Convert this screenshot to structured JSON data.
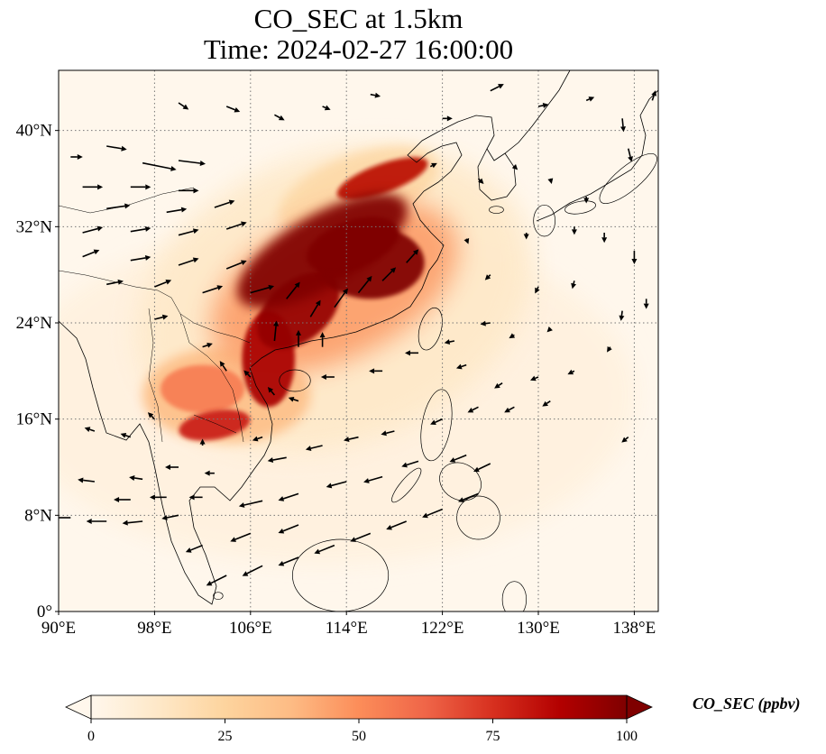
{
  "title": {
    "line1": "CO_SEC at 1.5km",
    "line2": "Time: 2024-02-27 16:00:00"
  },
  "map": {
    "lon_range": [
      90,
      140
    ],
    "lat_range": [
      0,
      45
    ],
    "lon_ticks": [
      90,
      98,
      106,
      114,
      122,
      130,
      138
    ],
    "lon_tick_labels": [
      "90°E",
      "98°E",
      "106°E",
      "114°E",
      "122°E",
      "130°E",
      "138°E"
    ],
    "lat_ticks": [
      0,
      8,
      16,
      24,
      32,
      40
    ],
    "lat_tick_labels": [
      "0°",
      "8°N",
      "16°N",
      "24°N",
      "32°N",
      "40°N"
    ],
    "gridlines": true,
    "field_blobs": [
      {
        "lon": 112,
        "lat": 30,
        "rx": 8,
        "ry": 3,
        "rot": -30,
        "value": 100
      },
      {
        "lon": 116,
        "lat": 29,
        "rx": 4.5,
        "ry": 3,
        "rot": 0,
        "value": 100
      },
      {
        "lon": 114.5,
        "lat": 30.5,
        "rx": 4,
        "ry": 2,
        "rot": -20,
        "value": 100
      },
      {
        "lon": 110,
        "lat": 25,
        "rx": 4,
        "ry": 2.5,
        "rot": -40,
        "value": 95
      },
      {
        "lon": 107.5,
        "lat": 21,
        "rx": 2.2,
        "ry": 4,
        "rot": 0,
        "value": 90
      },
      {
        "lon": 117,
        "lat": 36,
        "rx": 4,
        "ry": 1.2,
        "rot": -20,
        "value": 85
      },
      {
        "lon": 103,
        "lat": 15.5,
        "rx": 3,
        "ry": 1.2,
        "rot": -10,
        "value": 80
      },
      {
        "lon": 102,
        "lat": 18.5,
        "rx": 3.5,
        "ry": 2,
        "rot": 0,
        "value": 55
      },
      {
        "lon": 113,
        "lat": 27,
        "rx": 11,
        "ry": 6,
        "rot": -25,
        "value": 45
      },
      {
        "lon": 104,
        "lat": 18,
        "rx": 7,
        "ry": 4,
        "rot": 0,
        "value": 35
      },
      {
        "lon": 115,
        "lat": 35,
        "rx": 7,
        "ry": 3,
        "rot": -20,
        "value": 22
      },
      {
        "lon": 113,
        "lat": 26,
        "rx": 17,
        "ry": 12,
        "rot": -20,
        "value": 12
      },
      {
        "lon": 112,
        "lat": 18,
        "rx": 26,
        "ry": 14,
        "rot": 0,
        "value": 5
      }
    ],
    "wind_vectors": [
      {
        "lon": 91,
        "lat": 37.8,
        "u": 1.8,
        "v": 0
      },
      {
        "lon": 94,
        "lat": 38.7,
        "u": 3,
        "v": -0.5
      },
      {
        "lon": 97,
        "lat": 37.3,
        "u": 5,
        "v": -1
      },
      {
        "lon": 100,
        "lat": 37.5,
        "u": 4,
        "v": -0.5
      },
      {
        "lon": 92,
        "lat": 35.3,
        "u": 3,
        "v": 0
      },
      {
        "lon": 96,
        "lat": 35.3,
        "u": 3,
        "v": 0
      },
      {
        "lon": 100,
        "lat": 35,
        "u": 3,
        "v": 0
      },
      {
        "lon": 94,
        "lat": 33.5,
        "u": 3.5,
        "v": 0.5
      },
      {
        "lon": 99,
        "lat": 33.2,
        "u": 3,
        "v": 0.5
      },
      {
        "lon": 103,
        "lat": 33.6,
        "u": 3,
        "v": 1
      },
      {
        "lon": 92,
        "lat": 31.5,
        "u": 3,
        "v": 0.8
      },
      {
        "lon": 96,
        "lat": 31.6,
        "u": 3,
        "v": 0.5
      },
      {
        "lon": 100,
        "lat": 31.3,
        "u": 3,
        "v": 0.8
      },
      {
        "lon": 104,
        "lat": 31.8,
        "u": 3,
        "v": 1
      },
      {
        "lon": 92,
        "lat": 29.5,
        "u": 2.5,
        "v": 1
      },
      {
        "lon": 96,
        "lat": 29.2,
        "u": 3,
        "v": 0.5
      },
      {
        "lon": 100,
        "lat": 28.8,
        "u": 3,
        "v": 1
      },
      {
        "lon": 104,
        "lat": 28.5,
        "u": 3,
        "v": 1.2
      },
      {
        "lon": 94,
        "lat": 27.2,
        "u": 2.5,
        "v": 0.5
      },
      {
        "lon": 98,
        "lat": 27,
        "u": 2.5,
        "v": 1
      },
      {
        "lon": 102,
        "lat": 26.5,
        "u": 3,
        "v": 1
      },
      {
        "lon": 106,
        "lat": 26.5,
        "u": 3.5,
        "v": 1
      },
      {
        "lon": 109,
        "lat": 26,
        "u": 2,
        "v": 2.5
      },
      {
        "lon": 111,
        "lat": 24.5,
        "u": 1.5,
        "v": 2.5
      },
      {
        "lon": 113,
        "lat": 25.3,
        "u": 2,
        "v": 2.8
      },
      {
        "lon": 115,
        "lat": 26.5,
        "u": 2,
        "v": 2.5
      },
      {
        "lon": 117,
        "lat": 27.5,
        "u": 2,
        "v": 2
      },
      {
        "lon": 119,
        "lat": 29,
        "u": 1.8,
        "v": 2
      },
      {
        "lon": 108,
        "lat": 22.5,
        "u": 0.3,
        "v": 3
      },
      {
        "lon": 110,
        "lat": 22,
        "u": 0,
        "v": 2.5
      },
      {
        "lon": 112,
        "lat": 22,
        "u": 0,
        "v": 2.2
      },
      {
        "lon": 98,
        "lat": 24.3,
        "u": 2,
        "v": 0.5
      },
      {
        "lon": 102,
        "lat": 22,
        "u": 1.5,
        "v": 0.5
      },
      {
        "lon": 104,
        "lat": 20,
        "u": -1,
        "v": 1.5
      },
      {
        "lon": 106,
        "lat": 19.5,
        "u": -1,
        "v": 1
      },
      {
        "lon": 108,
        "lat": 18,
        "u": -1,
        "v": 1.2
      },
      {
        "lon": 110,
        "lat": 17.5,
        "u": -1.5,
        "v": 0.5
      },
      {
        "lon": 113,
        "lat": 19.5,
        "u": -2,
        "v": 0
      },
      {
        "lon": 117,
        "lat": 20,
        "u": -2,
        "v": 0
      },
      {
        "lon": 120,
        "lat": 21.5,
        "u": -2,
        "v": 0
      },
      {
        "lon": 123,
        "lat": 22.5,
        "u": -1.5,
        "v": -0.3
      },
      {
        "lon": 126,
        "lat": 24,
        "u": -1.5,
        "v": -0.2
      },
      {
        "lon": 124,
        "lat": 20.5,
        "u": -1.5,
        "v": -0.5
      },
      {
        "lon": 127,
        "lat": 19,
        "u": -1.2,
        "v": -0.8
      },
      {
        "lon": 130,
        "lat": 19.5,
        "u": -1.2,
        "v": -0.5
      },
      {
        "lon": 133,
        "lat": 20,
        "u": -1,
        "v": -0.5
      },
      {
        "lon": 128,
        "lat": 17,
        "u": -1.5,
        "v": -0.8
      },
      {
        "lon": 131,
        "lat": 17.5,
        "u": -1.2,
        "v": -0.8
      },
      {
        "lon": 125,
        "lat": 17,
        "u": -1.6,
        "v": -0.8
      },
      {
        "lon": 122,
        "lat": 16,
        "u": -1.8,
        "v": -0.8
      },
      {
        "lon": 118,
        "lat": 15,
        "u": -2,
        "v": -0.5
      },
      {
        "lon": 115,
        "lat": 14.5,
        "u": -2.2,
        "v": -0.5
      },
      {
        "lon": 112,
        "lat": 13.8,
        "u": -2.5,
        "v": -0.6
      },
      {
        "lon": 109,
        "lat": 12.8,
        "u": -2.8,
        "v": -0.5
      },
      {
        "lon": 120,
        "lat": 12.5,
        "u": -2.5,
        "v": -0.8
      },
      {
        "lon": 117,
        "lat": 11.2,
        "u": -2.8,
        "v": -0.8
      },
      {
        "lon": 114,
        "lat": 10.8,
        "u": -3,
        "v": -0.8
      },
      {
        "lon": 110,
        "lat": 9.8,
        "u": -3,
        "v": -1
      },
      {
        "lon": 107,
        "lat": 9.2,
        "u": -3.5,
        "v": -0.8
      },
      {
        "lon": 124,
        "lat": 13,
        "u": -2.5,
        "v": -1
      },
      {
        "lon": 126,
        "lat": 12.3,
        "u": -2.5,
        "v": -1.2
      },
      {
        "lon": 125,
        "lat": 9.8,
        "u": -3,
        "v": -1.2
      },
      {
        "lon": 122,
        "lat": 8.5,
        "u": -3,
        "v": -1.2
      },
      {
        "lon": 119,
        "lat": 7.5,
        "u": -3,
        "v": -1.2
      },
      {
        "lon": 116,
        "lat": 6.5,
        "u": -3,
        "v": -1.2
      },
      {
        "lon": 113,
        "lat": 5.5,
        "u": -3,
        "v": -1.2
      },
      {
        "lon": 110,
        "lat": 4.5,
        "u": -3,
        "v": -1.2
      },
      {
        "lon": 107,
        "lat": 3.8,
        "u": -3,
        "v": -1.5
      },
      {
        "lon": 104,
        "lat": 3,
        "u": -3,
        "v": -1.5
      },
      {
        "lon": 110,
        "lat": 7.2,
        "u": -3,
        "v": -1.2
      },
      {
        "lon": 106,
        "lat": 6.5,
        "u": -3,
        "v": -1.2
      },
      {
        "lon": 102,
        "lat": 5.5,
        "u": -2.5,
        "v": -1
      },
      {
        "lon": 100,
        "lat": 8,
        "u": -2.5,
        "v": -0.5
      },
      {
        "lon": 97,
        "lat": 7.5,
        "u": -3,
        "v": -0.3
      },
      {
        "lon": 94,
        "lat": 7.5,
        "u": -3,
        "v": 0
      },
      {
        "lon": 91,
        "lat": 7.8,
        "u": -2.5,
        "v": 0
      },
      {
        "lon": 96,
        "lat": 9.3,
        "u": -2.5,
        "v": 0
      },
      {
        "lon": 99,
        "lat": 9.5,
        "u": -2.5,
        "v": 0
      },
      {
        "lon": 102,
        "lat": 9.5,
        "u": -2,
        "v": 0
      },
      {
        "lon": 93,
        "lat": 10.8,
        "u": -2.5,
        "v": 0.3
      },
      {
        "lon": 97,
        "lat": 11,
        "u": -2,
        "v": 0.3
      },
      {
        "lon": 100,
        "lat": 12,
        "u": -2,
        "v": 0
      },
      {
        "lon": 102,
        "lat": 13.8,
        "u": 0,
        "v": 1
      },
      {
        "lon": 96,
        "lat": 14.5,
        "u": -1.5,
        "v": 0.5
      },
      {
        "lon": 93,
        "lat": 15,
        "u": -1.5,
        "v": 0.5
      },
      {
        "lon": 98,
        "lat": 16,
        "u": -1,
        "v": 1
      },
      {
        "lon": 107,
        "lat": 14.5,
        "u": -1.5,
        "v": -0.5
      },
      {
        "lon": 103,
        "lat": 11.5,
        "u": -1.5,
        "v": 0
      },
      {
        "lon": 104,
        "lat": 42,
        "u": 2,
        "v": -0.8
      },
      {
        "lon": 100,
        "lat": 42.3,
        "u": 1.5,
        "v": -1
      },
      {
        "lon": 108,
        "lat": 41.3,
        "u": 1.5,
        "v": -0.8
      },
      {
        "lon": 112,
        "lat": 42,
        "u": 1.2,
        "v": -0.5
      },
      {
        "lon": 116,
        "lat": 43,
        "u": 1.5,
        "v": -0.3
      },
      {
        "lon": 122,
        "lat": 41,
        "u": 1.5,
        "v": 0
      },
      {
        "lon": 126,
        "lat": 43.3,
        "u": 2,
        "v": 1
      },
      {
        "lon": 130,
        "lat": 42,
        "u": 1.5,
        "v": 0.3
      },
      {
        "lon": 134,
        "lat": 42.5,
        "u": 1.2,
        "v": 0.5
      },
      {
        "lon": 137,
        "lat": 41,
        "u": 0.2,
        "v": -2
      },
      {
        "lon": 139.5,
        "lat": 42.5,
        "u": 0.5,
        "v": 1.5
      },
      {
        "lon": 121,
        "lat": 37,
        "u": 1,
        "v": 0.5
      },
      {
        "lon": 125,
        "lat": 36,
        "u": 0.8,
        "v": -0.8
      },
      {
        "lon": 128,
        "lat": 37,
        "u": 0.5,
        "v": -0.5
      },
      {
        "lon": 131,
        "lat": 36,
        "u": 0.2,
        "v": -0.8
      },
      {
        "lon": 134,
        "lat": 34.5,
        "u": 0,
        "v": -1
      },
      {
        "lon": 137.5,
        "lat": 38.5,
        "u": 0.5,
        "v": -2
      },
      {
        "lon": 129,
        "lat": 31.5,
        "u": 0,
        "v": -1
      },
      {
        "lon": 133,
        "lat": 32,
        "u": 0,
        "v": -1.2
      },
      {
        "lon": 135.5,
        "lat": 31.5,
        "u": 0,
        "v": -1.5
      },
      {
        "lon": 138,
        "lat": 30,
        "u": 0,
        "v": -2
      },
      {
        "lon": 139,
        "lat": 26,
        "u": 0,
        "v": -1.5
      },
      {
        "lon": 137,
        "lat": 25,
        "u": -0.2,
        "v": -1.5
      },
      {
        "lon": 133,
        "lat": 27.5,
        "u": -0.3,
        "v": -1.2
      },
      {
        "lon": 130,
        "lat": 27,
        "u": -0.5,
        "v": -1
      },
      {
        "lon": 126,
        "lat": 28,
        "u": -0.8,
        "v": -0.8
      },
      {
        "lon": 124,
        "lat": 31,
        "u": 0.3,
        "v": -0.8
      },
      {
        "lon": 128,
        "lat": 23,
        "u": -0.8,
        "v": -0.5
      },
      {
        "lon": 131,
        "lat": 23.5,
        "u": -0.5,
        "v": -0.5
      },
      {
        "lon": 136,
        "lat": 22,
        "u": -0.5,
        "v": -0.8
      },
      {
        "lon": 137.5,
        "lat": 14.5,
        "u": -1,
        "v": -0.8
      }
    ],
    "islands": [
      {
        "lon": 121,
        "lat": 23.5,
        "rx": 0.9,
        "ry": 1.8,
        "rot": 15
      },
      {
        "lon": 109.7,
        "lat": 19.2,
        "rx": 1.3,
        "ry": 0.9,
        "rot": 0
      },
      {
        "lon": 121.5,
        "lat": 15.5,
        "rx": 1.2,
        "ry": 3,
        "rot": 10
      },
      {
        "lon": 123.5,
        "lat": 10.8,
        "rx": 1.8,
        "ry": 1.5,
        "rot": 30
      },
      {
        "lon": 125,
        "lat": 7.8,
        "rx": 1.8,
        "ry": 1.8,
        "rot": 0
      },
      {
        "lon": 119,
        "lat": 10.5,
        "rx": 0.5,
        "ry": 1.8,
        "rot": 40
      },
      {
        "lon": 113.5,
        "lat": 3,
        "rx": 4,
        "ry": 3,
        "rot": 0
      },
      {
        "lon": 128,
        "lat": 1,
        "rx": 1,
        "ry": 1.5,
        "rot": 0
      },
      {
        "lon": 130.5,
        "lat": 32.5,
        "rx": 0.9,
        "ry": 1.3,
        "rot": 0
      },
      {
        "lon": 133.5,
        "lat": 33.6,
        "rx": 1.3,
        "ry": 0.5,
        "rot": -10
      },
      {
        "lon": 137.5,
        "lat": 36,
        "rx": 3,
        "ry": 1,
        "rot": -40
      },
      {
        "lon": 126.5,
        "lat": 33.4,
        "rx": 0.6,
        "ry": 0.3,
        "rot": 0
      },
      {
        "lon": 103.3,
        "lat": 1.3,
        "rx": 0.4,
        "ry": 0.3,
        "rot": 0
      }
    ]
  },
  "colorbar": {
    "ticks": [
      0,
      25,
      50,
      75,
      100
    ],
    "tick_labels": [
      "0",
      "25",
      "50",
      "75",
      "100"
    ],
    "min": 0,
    "max": 100,
    "colormap": "OrRd",
    "extend": "both",
    "label": "CO_SEC (ppbv)"
  }
}
